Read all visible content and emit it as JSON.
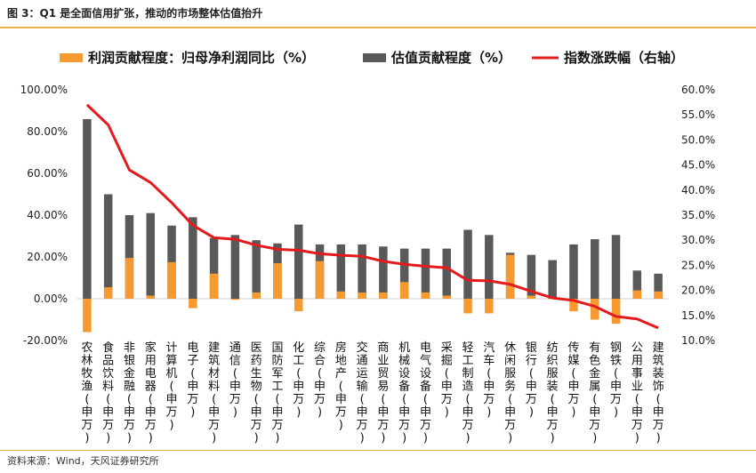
{
  "figure": {
    "title": "图 3：Q1 是全面信用扩张，推动的市场整体估值抬升",
    "source": "资料来源：Wind，天风证券研究所"
  },
  "colors": {
    "profit": "#f59a30",
    "valuation": "#595959",
    "line": "#e41a1c"
  },
  "chart_data": {
    "type": "bar",
    "categories": [
      "农林牧渔(申万)",
      "食品饮料(申万)",
      "非银金融(申万)",
      "家用电器(申万)",
      "计算机(申万)",
      "电子(申万)",
      "建筑材料(申万)",
      "通信(申万)",
      "医药生物(申万)",
      "国防军工(申万)",
      "化工(申万)",
      "综合(申万)",
      "房地产(申万)",
      "交通运输(申万)",
      "商业贸易(申万)",
      "机械设备(申万)",
      "电气设备(申万)",
      "采掘(申万)",
      "轻工制造(申万)",
      "汽车(申万)",
      "休闲服务(申万)",
      "银行(申万)",
      "纺织服装(申万)",
      "传媒(申万)",
      "有色金属(申万)",
      "钢铁(申万)",
      "公用事业(申万)",
      "建筑装饰(申万)"
    ],
    "series": [
      {
        "name": "利润贡献程度：归母净利润同比（%）",
        "type": "bar",
        "axis": "left",
        "values": [
          -16,
          5.5,
          19.5,
          1.5,
          17.5,
          -4.5,
          12,
          -0.5,
          3,
          17,
          -6,
          18,
          3.5,
          3,
          3,
          8,
          3,
          1.5,
          -7,
          -7,
          21,
          1.5,
          0,
          -6,
          -10,
          -12,
          4,
          3.5
        ]
      },
      {
        "name": "估值贡献程度（%）",
        "type": "bar",
        "axis": "left",
        "values": [
          86,
          50,
          40,
          41,
          35,
          39,
          29,
          30.5,
          28,
          26.5,
          35.5,
          26,
          26,
          26,
          25,
          24,
          24,
          24,
          33,
          30.5,
          22,
          21,
          18.5,
          26,
          28.5,
          30.5,
          13.5,
          12
        ]
      },
      {
        "name": "指数涨跌幅（右轴）",
        "type": "line",
        "axis": "right",
        "values": [
          57,
          53,
          44,
          41.5,
          37.5,
          33,
          30.5,
          30.2,
          29,
          28.2,
          28,
          27.3,
          27,
          26.8,
          25.8,
          25.2,
          24.8,
          24.5,
          22,
          21.9,
          21.2,
          19.8,
          18.5,
          18,
          16.8,
          14.8,
          14.3,
          12.5
        ]
      }
    ],
    "left_axis": {
      "ticks": [
        "100.00%",
        "80.00%",
        "60.00%",
        "40.00%",
        "20.00%",
        "0.00%",
        "-20.00%"
      ],
      "ylim": [
        -20,
        100
      ]
    },
    "right_axis": {
      "ticks": [
        "60.0%",
        "55.0%",
        "50.0%",
        "45.0%",
        "40.0%",
        "35.0%",
        "30.0%",
        "25.0%",
        "20.0%",
        "15.0%",
        "10.0%"
      ],
      "ylim": [
        10,
        60
      ]
    },
    "legend": [
      "利润贡献程度：归母净利润同比（%）",
      "估值贡献程度（%）",
      "指数涨跌幅（右轴）"
    ],
    "legend_position": "top",
    "grid": false
  }
}
